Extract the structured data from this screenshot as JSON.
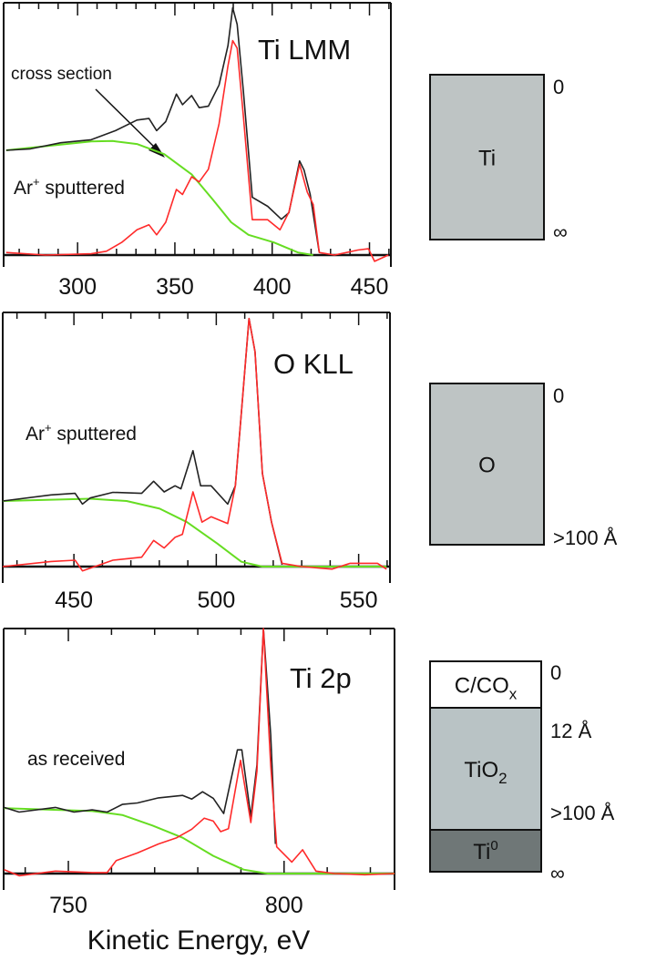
{
  "chart_data": [
    {
      "type": "line",
      "title": "Ti LMM",
      "xlabel": "",
      "ylabel": "",
      "xlim": [
        262,
        461
      ],
      "ylim": [
        0,
        1
      ],
      "xticks": [
        300,
        350,
        400,
        450
      ],
      "grid": false,
      "annotations": [
        "cross section",
        "Ar",
        "+",
        " sputtered"
      ],
      "colors": {
        "measured": "#222222",
        "background_subtracted": "#ff2a2a",
        "cross_section": "#66dd22"
      },
      "series": [
        {
          "color": "#222222",
          "x": [
            263.3,
            275.8,
            291.4,
            307,
            319.5,
            330.5,
            336.7,
            340.6,
            345.3,
            350.8,
            353.9,
            358.6,
            362.5,
            367.2,
            372.7,
            377.3,
            379.7,
            382,
            385.2,
            389.8,
            397.7,
            404.7,
            408.6,
            414.1,
            416.4,
            419.5,
            424.2
          ],
          "y": [
            0.415,
            0.421,
            0.445,
            0.457,
            0.493,
            0.535,
            0.541,
            0.493,
            0.529,
            0.638,
            0.596,
            0.632,
            0.584,
            0.59,
            0.674,
            0.83,
            0.98,
            0.914,
            0.65,
            0.229,
            0.193,
            0.142,
            0.168,
            0.373,
            0.337,
            0.241,
            0.01
          ]
        },
        {
          "color": "#ff2a2a",
          "x": [
            263.3,
            283.6,
            307,
            314.8,
            322.7,
            330.5,
            336.7,
            340.6,
            345.3,
            350.8,
            353.9,
            358.6,
            362.5,
            367.2,
            372.7,
            377.3,
            379.7,
            382,
            385.2,
            389.8,
            397.7,
            404,
            408.6,
            414.1,
            418,
            421.1,
            424.2,
            432,
            444,
            449.5,
            452.6,
            459.7
          ],
          "y": [
            0.01,
            0.0,
            0.005,
            0.015,
            0.05,
            0.1,
            0.12,
            0.08,
            0.13,
            0.26,
            0.24,
            0.31,
            0.29,
            0.34,
            0.52,
            0.75,
            0.85,
            0.82,
            0.55,
            0.14,
            0.14,
            0.1,
            0.17,
            0.36,
            0.25,
            0.2,
            0.01,
            0.0,
            0.02,
            0.025,
            -0.025,
            0.0
          ]
        },
        {
          "color": "#66dd22",
          "x": [
            263.3,
            307,
            318,
            330.5,
            344.5,
            358.6,
            369.5,
            378.9,
            387.8,
            400.8,
            413.3,
            421
          ],
          "y": [
            0.415,
            0.45,
            0.452,
            0.44,
            0.4,
            0.32,
            0.22,
            0.13,
            0.08,
            0.05,
            0.01,
            0.0
          ]
        }
      ]
    },
    {
      "type": "line",
      "title": "O KLL",
      "xlabel": "",
      "ylabel": "",
      "xlim": [
        425,
        561
      ],
      "ylim": [
        0,
        1
      ],
      "xticks": [
        450,
        500,
        550
      ],
      "grid": false,
      "annotations": [
        "Ar",
        "+",
        " sputtered"
      ],
      "series": [
        {
          "color": "#222222",
          "x": [
            425,
            442,
            450.4,
            453,
            455.7,
            463.7,
            473.8,
            478,
            481.7,
            485.5,
            487.6,
            491.8,
            494.5,
            498.2,
            504,
            506.7,
            508.8,
            511.5,
            513.6,
            516.2,
            519.4,
            523.1
          ],
          "y": [
            0.258,
            0.282,
            0.288,
            0.246,
            0.27,
            0.292,
            0.288,
            0.336,
            0.294,
            0.318,
            0.306,
            0.456,
            0.318,
            0.318,
            0.246,
            0.318,
            0.605,
            0.976,
            0.845,
            0.366,
            0.175,
            0.007
          ]
        },
        {
          "color": "#ff2a2a",
          "x": [
            425,
            442,
            450.4,
            453,
            463.7,
            473.8,
            478,
            481.7,
            485.5,
            488.1,
            491.8,
            495,
            498.2,
            504,
            506.7,
            508.8,
            511.5,
            513.6,
            516.2,
            519.4,
            523.1,
            530,
            540.7,
            547,
            556.6,
            559.8
          ],
          "y": [
            0,
            0.02,
            0.025,
            -0.017,
            0.025,
            0.037,
            0.103,
            0.073,
            0.115,
            0.127,
            0.294,
            0.175,
            0.196,
            0.169,
            0.318,
            0.605,
            0.976,
            0.845,
            0.366,
            0.175,
            0.013,
            0,
            -0.01,
            0.013,
            0.013,
            -0.01
          ]
        },
        {
          "color": "#66dd22",
          "x": [
            425,
            455.7,
            468.5,
            480.1,
            489.7,
            500.3,
            508.8,
            516.2,
            559.8
          ],
          "y": [
            0.258,
            0.267,
            0.258,
            0.228,
            0.175,
            0.091,
            0.019,
            0,
            0
          ]
        }
      ]
    },
    {
      "type": "line",
      "title": "Ti 2p",
      "xlabel": "Kinetic Energy, eV",
      "ylabel": "",
      "xlim": [
        735,
        825.6
      ],
      "ylim": [
        0,
        1
      ],
      "xticks": [
        750,
        800
      ],
      "grid": false,
      "annotations": [
        "as received"
      ],
      "series": [
        {
          "color": "#222222",
          "x": [
            735.1,
            738.6,
            747,
            751.3,
            755.5,
            759,
            762.5,
            766,
            770.9,
            776.5,
            778.6,
            781.1,
            783.6,
            786,
            789.2,
            790.2,
            792.3,
            793.7,
            795.2,
            796.9,
            798
          ],
          "y": [
            0.27,
            0.251,
            0.27,
            0.251,
            0.26,
            0.251,
            0.282,
            0.288,
            0.309,
            0.319,
            0.304,
            0.334,
            0.307,
            0.245,
            0.505,
            0.505,
            0.233,
            0.443,
            1.0,
            0.567,
            0.121
          ]
        },
        {
          "color": "#ff2a2a",
          "x": [
            735.1,
            738.6,
            747,
            755.5,
            759,
            761.1,
            766,
            770.9,
            775.1,
            778.6,
            781.5,
            783.6,
            785.3,
            787.1,
            789.9,
            792.3,
            793.7,
            795.2,
            796.9,
            798.3,
            801.8,
            804.3,
            807.4,
            811.7,
            818.7,
            825.6
          ],
          "y": [
            0.016,
            -0.009,
            0.01,
            0.004,
            0.004,
            0.053,
            0.084,
            0.121,
            0.146,
            0.181,
            0.226,
            0.214,
            0.171,
            0.183,
            0.462,
            0.208,
            0.418,
            1.0,
            0.443,
            0.109,
            0.047,
            0.097,
            0.01,
            0,
            -0.005,
            0
          ]
        },
        {
          "color": "#66dd22",
          "x": [
            735.1,
            755.5,
            762.5,
            769.5,
            776.5,
            783.6,
            790.6,
            796.2,
            825.6
          ],
          "y": [
            0.267,
            0.255,
            0.239,
            0.196,
            0.146,
            0.072,
            0.016,
            0,
            0
          ]
        }
      ]
    }
  ],
  "depth_diagrams": [
    {
      "layers": [
        {
          "label": "Ti",
          "color": "#bec4c4"
        }
      ],
      "depth_labels": [
        "0",
        "∞"
      ]
    },
    {
      "layers": [
        {
          "label": "O",
          "color": "#bec4c4"
        }
      ],
      "depth_labels": [
        "0",
        ">100 Å"
      ]
    },
    {
      "layers": [
        {
          "label": "C/CO",
          "sub": "x",
          "color": "#ffffff"
        },
        {
          "label": "TiO",
          "sub": "2",
          "color": "#b9c3c5"
        },
        {
          "label": "Ti",
          "sup": "0",
          "color": "#6f7777"
        }
      ],
      "depth_labels": [
        "0",
        "12 Å",
        ">100 Å",
        "∞"
      ]
    }
  ]
}
